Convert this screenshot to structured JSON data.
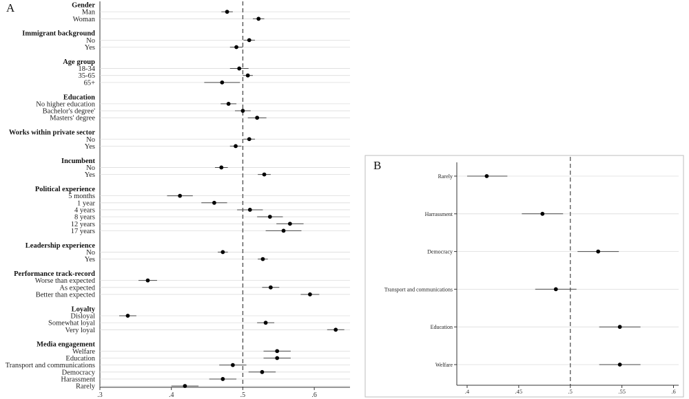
{
  "chart_data": [
    {
      "panel": "A",
      "type": "scatter",
      "title": "",
      "xlabel": "",
      "ylabel": "",
      "xlim": [
        0.3,
        0.65
      ],
      "xticks": [
        0.3,
        0.4,
        0.5,
        0.6
      ],
      "xtick_labels": [
        ".3",
        ".4",
        ".5",
        ".6"
      ],
      "reference_line": 0.5,
      "grid": true,
      "groups": [
        {
          "title": "Gender",
          "items": [
            {
              "label": "Man",
              "x": 0.478,
              "lo": 0.47,
              "hi": 0.486
            },
            {
              "label": "Woman",
              "x": 0.522,
              "lo": 0.514,
              "hi": 0.53
            }
          ]
        },
        {
          "title": "Immigrant background",
          "items": [
            {
              "label": "No",
              "x": 0.509,
              "lo": 0.501,
              "hi": 0.517
            },
            {
              "label": "Yes",
              "x": 0.491,
              "lo": 0.482,
              "hi": 0.5
            }
          ]
        },
        {
          "title": "Age group",
          "items": [
            {
              "label": "18-34",
              "x": 0.495,
              "lo": 0.482,
              "hi": 0.508
            },
            {
              "label": "35-65",
              "x": 0.507,
              "lo": 0.5,
              "hi": 0.514
            },
            {
              "label": "65+",
              "x": 0.471,
              "lo": 0.446,
              "hi": 0.496
            }
          ]
        },
        {
          "title": "Education",
          "items": [
            {
              "label": "No higher education",
              "x": 0.48,
              "lo": 0.469,
              "hi": 0.491
            },
            {
              "label": "Bachelor's degree'",
              "x": 0.5,
              "lo": 0.489,
              "hi": 0.511
            },
            {
              "label": "Masters' degree",
              "x": 0.52,
              "lo": 0.507,
              "hi": 0.533
            }
          ]
        },
        {
          "title": "Works within private sector",
          "items": [
            {
              "label": "No",
              "x": 0.509,
              "lo": 0.501,
              "hi": 0.517
            },
            {
              "label": "Yes",
              "x": 0.49,
              "lo": 0.482,
              "hi": 0.498
            }
          ]
        },
        {
          "title": "Incumbent",
          "items": [
            {
              "label": "No",
              "x": 0.47,
              "lo": 0.461,
              "hi": 0.479
            },
            {
              "label": "Yes",
              "x": 0.53,
              "lo": 0.521,
              "hi": 0.539
            }
          ]
        },
        {
          "title": "Political experience",
          "items": [
            {
              "label": "5 months",
              "x": 0.412,
              "lo": 0.394,
              "hi": 0.43
            },
            {
              "label": "1 year",
              "x": 0.46,
              "lo": 0.442,
              "hi": 0.478
            },
            {
              "label": "4 years",
              "x": 0.51,
              "lo": 0.492,
              "hi": 0.528
            },
            {
              "label": "8 years",
              "x": 0.538,
              "lo": 0.52,
              "hi": 0.556
            },
            {
              "label": "12 years",
              "x": 0.566,
              "lo": 0.547,
              "hi": 0.585
            },
            {
              "label": "17 years",
              "x": 0.557,
              "lo": 0.532,
              "hi": 0.582
            }
          ]
        },
        {
          "title": "Leadership experience",
          "items": [
            {
              "label": "No",
              "x": 0.472,
              "lo": 0.465,
              "hi": 0.479
            },
            {
              "label": "Yes",
              "x": 0.528,
              "lo": 0.521,
              "hi": 0.535
            }
          ]
        },
        {
          "title": "Performance track-record",
          "items": [
            {
              "label": "Worse than expected",
              "x": 0.367,
              "lo": 0.354,
              "hi": 0.38
            },
            {
              "label": "As expected",
              "x": 0.539,
              "lo": 0.527,
              "hi": 0.551
            },
            {
              "label": "Better than expected",
              "x": 0.594,
              "lo": 0.581,
              "hi": 0.607
            }
          ]
        },
        {
          "title": "Loyalty",
          "items": [
            {
              "label": "Disloyal",
              "x": 0.339,
              "lo": 0.327,
              "hi": 0.351
            },
            {
              "label": "Somewhat loyal",
              "x": 0.532,
              "lo": 0.52,
              "hi": 0.544
            },
            {
              "label": "Very loyal",
              "x": 0.63,
              "lo": 0.618,
              "hi": 0.642
            }
          ]
        },
        {
          "title": "Media engagement",
          "items": [
            {
              "label": "Welfare",
              "x": 0.548,
              "lo": 0.529,
              "hi": 0.567
            },
            {
              "label": "Education",
              "x": 0.548,
              "lo": 0.529,
              "hi": 0.567
            },
            {
              "label": "Transport and communications",
              "x": 0.486,
              "lo": 0.467,
              "hi": 0.505
            },
            {
              "label": "Democracy",
              "x": 0.527,
              "lo": 0.508,
              "hi": 0.546
            },
            {
              "label": "Harassment",
              "x": 0.472,
              "lo": 0.453,
              "hi": 0.491
            },
            {
              "label": "Rarely",
              "x": 0.419,
              "lo": 0.4,
              "hi": 0.438
            }
          ]
        }
      ]
    },
    {
      "panel": "B",
      "type": "scatter",
      "title": "",
      "xlabel": "",
      "ylabel": "",
      "xlim": [
        0.39,
        0.605
      ],
      "xticks": [
        0.4,
        0.45,
        0.5,
        0.55,
        0.6
      ],
      "xtick_labels": [
        ".4",
        ".45",
        ".5",
        ".55",
        ".6"
      ],
      "reference_line": 0.5,
      "grid": true,
      "items": [
        {
          "label": "Rarely",
          "x": 0.419,
          "lo": 0.4,
          "hi": 0.439
        },
        {
          "label": "Harrassment",
          "x": 0.473,
          "lo": 0.453,
          "hi": 0.493
        },
        {
          "label": "Democracy",
          "x": 0.527,
          "lo": 0.507,
          "hi": 0.547
        },
        {
          "label": "Transport and communications",
          "x": 0.486,
          "lo": 0.466,
          "hi": 0.506
        },
        {
          "label": "Education",
          "x": 0.548,
          "lo": 0.528,
          "hi": 0.568
        },
        {
          "label": "Welfare",
          "x": 0.548,
          "lo": 0.528,
          "hi": 0.568
        }
      ]
    }
  ],
  "colors": {
    "marker": "#000000",
    "ci": "#444444",
    "grid": "#dcdcdc",
    "reference": "#555555",
    "axis": "#333333"
  },
  "panel_a": {
    "letter": "A"
  },
  "panel_b": {
    "letter": "B"
  }
}
